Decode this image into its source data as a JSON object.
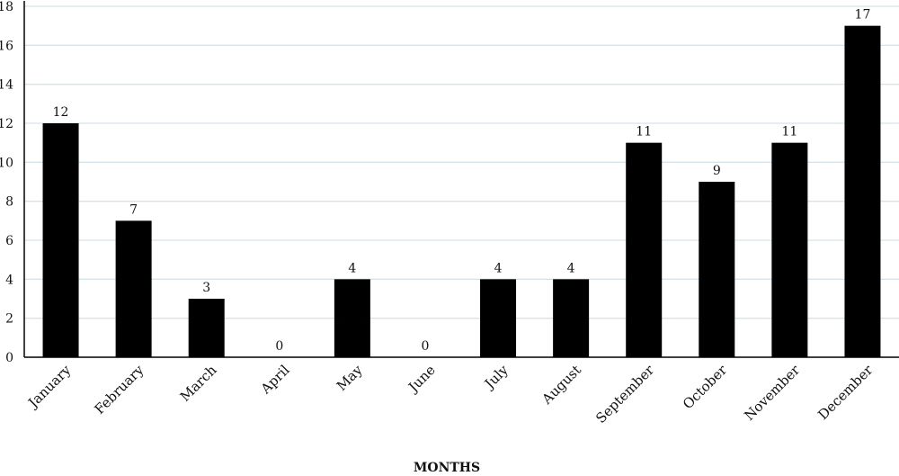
{
  "chart_data": {
    "type": "bar",
    "categories": [
      "January",
      "February",
      "March",
      "April",
      "May",
      "June",
      "July",
      "August",
      "September",
      "October",
      "November",
      "December"
    ],
    "values": [
      12,
      7,
      3,
      0,
      4,
      0,
      4,
      4,
      11,
      9,
      11,
      17
    ],
    "data_labels": [
      "12",
      "7",
      "3",
      "0",
      "4",
      "0",
      "4",
      "4",
      "11",
      "9",
      "11",
      "17"
    ],
    "title": "",
    "xlabel": "MONTHS",
    "ylabel": "",
    "ylim": [
      0,
      18
    ],
    "yticks": [
      0,
      2,
      4,
      6,
      8,
      10,
      12,
      14,
      16,
      18
    ],
    "grid": true,
    "legend": "none",
    "colors": {
      "bar": "#000000",
      "grid": "#d6e3ea",
      "axis": "#000000"
    }
  }
}
